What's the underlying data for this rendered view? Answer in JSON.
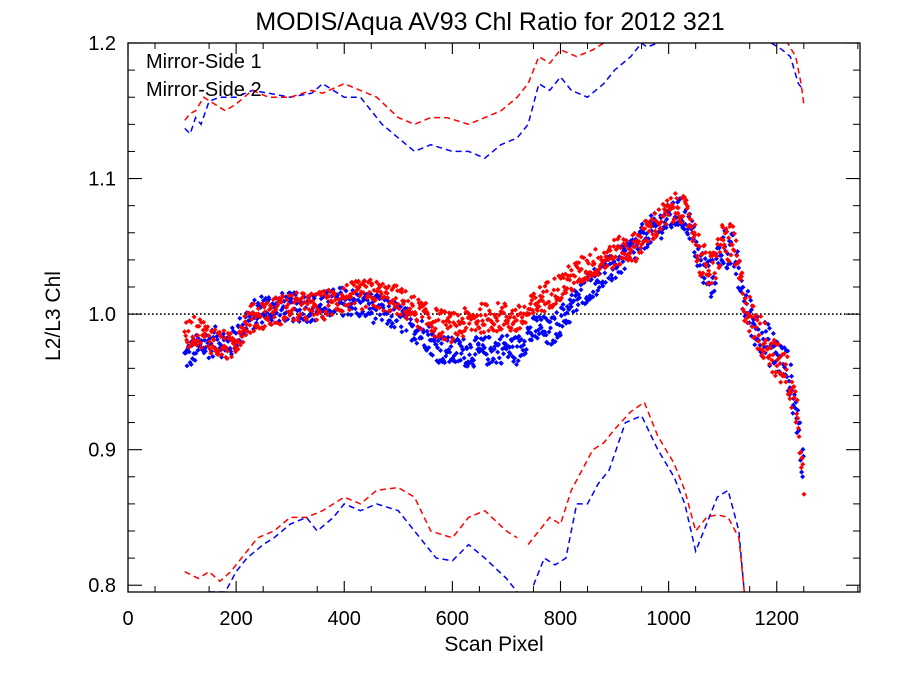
{
  "chart_data": {
    "type": "scatter",
    "title": "MODIS/Aqua AV93 Chl Ratio for 2012 321",
    "xlabel": "Scan Pixel",
    "ylabel": "L2/L3 Chl",
    "xlim": [
      0,
      1354
    ],
    "ylim": [
      0.795,
      1.2
    ],
    "xticks": [
      0,
      200,
      400,
      600,
      800,
      1000,
      1200
    ],
    "xtick_labels": [
      "0",
      "200",
      "400",
      "600",
      "800",
      "1000",
      "1200"
    ],
    "yticks": [
      0.8,
      0.9,
      1.0,
      1.1,
      1.2
    ],
    "ytick_labels": [
      "0.8",
      "0.9",
      "1.0",
      "1.1",
      "1.2"
    ],
    "reference_line": 1.0,
    "legend_position": "top-left",
    "colors": {
      "ms1": "#0000ff",
      "ms2": "#ff0000",
      "reference": "#000000"
    },
    "series": [
      {
        "name": "Mirror-Side 1",
        "color": "#0000ff",
        "mean_points": [
          [
            105,
            0.968
          ],
          [
            130,
            0.975
          ],
          [
            160,
            0.98
          ],
          [
            190,
            0.978
          ],
          [
            220,
            0.995
          ],
          [
            250,
            1.005
          ],
          [
            300,
            1.005
          ],
          [
            350,
            1.005
          ],
          [
            400,
            1.01
          ],
          [
            450,
            1.005
          ],
          [
            500,
            0.998
          ],
          [
            550,
            0.985
          ],
          [
            575,
            0.975
          ],
          [
            600,
            0.972
          ],
          [
            650,
            0.972
          ],
          [
            700,
            0.975
          ],
          [
            720,
            0.973
          ],
          [
            740,
            0.985
          ],
          [
            760,
            0.99
          ],
          [
            780,
            0.985
          ],
          [
            800,
            0.995
          ],
          [
            850,
            1.02
          ],
          [
            900,
            1.035
          ],
          [
            940,
            1.05
          ],
          [
            960,
            1.06
          ],
          [
            1000,
            1.07
          ],
          [
            1020,
            1.075
          ],
          [
            1040,
            1.065
          ],
          [
            1060,
            1.035
          ],
          [
            1080,
            1.025
          ],
          [
            1100,
            1.05
          ],
          [
            1120,
            1.045
          ],
          [
            1140,
            1.01
          ],
          [
            1160,
            0.99
          ],
          [
            1180,
            0.98
          ],
          [
            1200,
            0.97
          ],
          [
            1220,
            0.96
          ],
          [
            1240,
            0.92
          ],
          [
            1250,
            0.88
          ]
        ],
        "upper_bound": [
          [
            105,
            1.137
          ],
          [
            115,
            1.133
          ],
          [
            125,
            1.145
          ],
          [
            135,
            1.14
          ],
          [
            150,
            1.157
          ],
          [
            170,
            1.16
          ],
          [
            200,
            1.16
          ],
          [
            230,
            1.165
          ],
          [
            260,
            1.163
          ],
          [
            300,
            1.16
          ],
          [
            340,
            1.163
          ],
          [
            360,
            1.17
          ],
          [
            400,
            1.16
          ],
          [
            430,
            1.16
          ],
          [
            470,
            1.14
          ],
          [
            500,
            1.13
          ],
          [
            530,
            1.12
          ],
          [
            560,
            1.125
          ],
          [
            600,
            1.12
          ],
          [
            630,
            1.12
          ],
          [
            660,
            1.115
          ],
          [
            690,
            1.125
          ],
          [
            720,
            1.13
          ],
          [
            740,
            1.14
          ],
          [
            760,
            1.17
          ],
          [
            780,
            1.165
          ],
          [
            800,
            1.175
          ],
          [
            820,
            1.165
          ],
          [
            850,
            1.16
          ],
          [
            880,
            1.17
          ],
          [
            900,
            1.18
          ],
          [
            930,
            1.19
          ],
          [
            950,
            1.2
          ],
          [
            960,
            1.197
          ],
          [
            980,
            1.2
          ]
        ],
        "upper_bound_tail": [
          [
            1190,
            1.2
          ],
          [
            1210,
            1.195
          ],
          [
            1225,
            1.19
          ],
          [
            1240,
            1.17
          ],
          [
            1250,
            1.165
          ]
        ],
        "lower_bound": [
          [
            150,
            0.795
          ],
          [
            180,
            0.795
          ],
          [
            200,
            0.81
          ],
          [
            220,
            0.82
          ],
          [
            250,
            0.83
          ],
          [
            270,
            0.835
          ],
          [
            300,
            0.845
          ],
          [
            330,
            0.85
          ],
          [
            350,
            0.84
          ],
          [
            380,
            0.85
          ],
          [
            400,
            0.86
          ],
          [
            430,
            0.855
          ],
          [
            460,
            0.86
          ],
          [
            500,
            0.855
          ],
          [
            530,
            0.84
          ],
          [
            570,
            0.82
          ],
          [
            600,
            0.818
          ],
          [
            630,
            0.83
          ],
          [
            660,
            0.82
          ],
          [
            700,
            0.805
          ],
          [
            720,
            0.795
          ]
        ],
        "lower_bound_2": [
          [
            750,
            0.8
          ],
          [
            770,
            0.82
          ],
          [
            790,
            0.815
          ],
          [
            810,
            0.82
          ],
          [
            830,
            0.86
          ],
          [
            850,
            0.86
          ],
          [
            870,
            0.875
          ],
          [
            890,
            0.885
          ],
          [
            920,
            0.92
          ],
          [
            950,
            0.925
          ],
          [
            980,
            0.9
          ],
          [
            1010,
            0.88
          ],
          [
            1030,
            0.86
          ],
          [
            1050,
            0.825
          ],
          [
            1070,
            0.845
          ],
          [
            1090,
            0.865
          ],
          [
            1110,
            0.87
          ],
          [
            1130,
            0.84
          ],
          [
            1140,
            0.795
          ]
        ]
      },
      {
        "name": "Mirror-Side 2",
        "color": "#ff0000",
        "mean_points": [
          [
            105,
            0.985
          ],
          [
            130,
            0.988
          ],
          [
            160,
            0.98
          ],
          [
            190,
            0.975
          ],
          [
            220,
            0.995
          ],
          [
            250,
            1.0
          ],
          [
            300,
            1.005
          ],
          [
            350,
            1.005
          ],
          [
            400,
            1.012
          ],
          [
            450,
            1.015
          ],
          [
            500,
            1.01
          ],
          [
            540,
            1.0
          ],
          [
            560,
            0.995
          ],
          [
            600,
            0.99
          ],
          [
            650,
            0.997
          ],
          [
            700,
            0.998
          ],
          [
            720,
            0.995
          ],
          [
            740,
            1.0
          ],
          [
            760,
            1.01
          ],
          [
            780,
            1.015
          ],
          [
            800,
            1.02
          ],
          [
            850,
            1.035
          ],
          [
            900,
            1.045
          ],
          [
            940,
            1.05
          ],
          [
            960,
            1.06
          ],
          [
            1000,
            1.075
          ],
          [
            1020,
            1.08
          ],
          [
            1040,
            1.07
          ],
          [
            1060,
            1.04
          ],
          [
            1080,
            1.03
          ],
          [
            1100,
            1.055
          ],
          [
            1120,
            1.05
          ],
          [
            1140,
            1.01
          ],
          [
            1160,
            0.99
          ],
          [
            1180,
            0.98
          ],
          [
            1200,
            0.965
          ],
          [
            1220,
            0.955
          ],
          [
            1240,
            0.925
          ],
          [
            1250,
            0.875
          ]
        ],
        "upper_bound": [
          [
            105,
            1.143
          ],
          [
            115,
            1.148
          ],
          [
            125,
            1.15
          ],
          [
            140,
            1.16
          ],
          [
            160,
            1.155
          ],
          [
            180,
            1.15
          ],
          [
            200,
            1.155
          ],
          [
            230,
            1.165
          ],
          [
            260,
            1.16
          ],
          [
            300,
            1.16
          ],
          [
            340,
            1.165
          ],
          [
            360,
            1.163
          ],
          [
            400,
            1.17
          ],
          [
            430,
            1.165
          ],
          [
            460,
            1.16
          ],
          [
            500,
            1.145
          ],
          [
            530,
            1.14
          ],
          [
            560,
            1.145
          ],
          [
            590,
            1.145
          ],
          [
            630,
            1.14
          ],
          [
            660,
            1.145
          ],
          [
            690,
            1.15
          ],
          [
            720,
            1.16
          ],
          [
            740,
            1.17
          ],
          [
            760,
            1.19
          ],
          [
            780,
            1.185
          ],
          [
            800,
            1.195
          ],
          [
            830,
            1.19
          ],
          [
            860,
            1.195
          ],
          [
            880,
            1.2
          ],
          [
            900,
            1.205
          ]
        ],
        "upper_bound_tail": [
          [
            1200,
            1.205
          ],
          [
            1220,
            1.2
          ],
          [
            1235,
            1.19
          ],
          [
            1245,
            1.17
          ],
          [
            1250,
            1.155
          ]
        ],
        "lower_bound": [
          [
            105,
            0.81
          ],
          [
            130,
            0.805
          ],
          [
            150,
            0.81
          ],
          [
            170,
            0.803
          ],
          [
            190,
            0.81
          ],
          [
            210,
            0.82
          ],
          [
            240,
            0.835
          ],
          [
            270,
            0.84
          ],
          [
            300,
            0.85
          ],
          [
            330,
            0.85
          ],
          [
            360,
            0.855
          ],
          [
            400,
            0.865
          ],
          [
            430,
            0.86
          ],
          [
            460,
            0.87
          ],
          [
            500,
            0.872
          ],
          [
            530,
            0.865
          ],
          [
            560,
            0.84
          ],
          [
            600,
            0.835
          ],
          [
            630,
            0.85
          ],
          [
            660,
            0.855
          ],
          [
            700,
            0.84
          ],
          [
            720,
            0.835
          ]
        ],
        "lower_bound_2": [
          [
            740,
            0.83
          ],
          [
            760,
            0.84
          ],
          [
            780,
            0.85
          ],
          [
            800,
            0.845
          ],
          [
            820,
            0.87
          ],
          [
            840,
            0.885
          ],
          [
            860,
            0.9
          ],
          [
            880,
            0.905
          ],
          [
            900,
            0.915
          ],
          [
            930,
            0.928
          ],
          [
            955,
            0.935
          ],
          [
            980,
            0.91
          ],
          [
            1010,
            0.89
          ],
          [
            1030,
            0.87
          ],
          [
            1050,
            0.84
          ],
          [
            1070,
            0.85
          ],
          [
            1090,
            0.852
          ],
          [
            1110,
            0.85
          ],
          [
            1130,
            0.835
          ],
          [
            1140,
            0.795
          ]
        ]
      }
    ]
  }
}
